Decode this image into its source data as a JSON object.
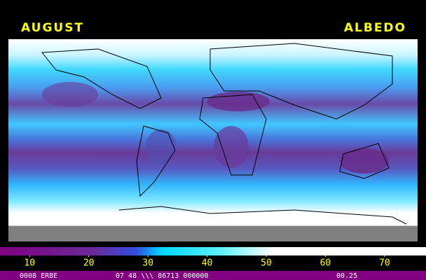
{
  "header": {
    "month": "AUGUST",
    "quantity": "ALBEDO"
  },
  "colorbar": {
    "range": [
      5,
      77
    ],
    "ticks": [
      10,
      20,
      30,
      40,
      50,
      60,
      70
    ]
  },
  "footer": {
    "left": "0008 ERBE",
    "middle": "07 48 \\\\\\ 86713 000000",
    "right": "00.25"
  }
}
